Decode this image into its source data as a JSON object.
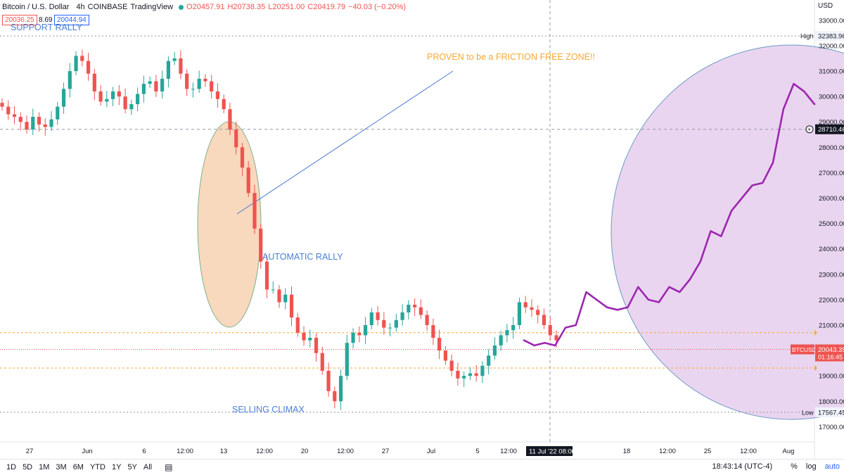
{
  "header": {
    "symbol": "Bitcoin / U.S. Dollar",
    "interval": "4h",
    "exchange": "COINBASE",
    "platform": "TradingView",
    "open": "O20457.91",
    "high": "H20738.35",
    "low": "L20251.00",
    "close": "C20419.79",
    "change": "−40.03 (−0.20%)",
    "sell_price": "20036.25",
    "spread": "8.69",
    "buy_price": "20044.94"
  },
  "currency": "USD",
  "colors": {
    "up": "#26a69a",
    "down": "#ef5350",
    "forecast": "#9c27b0",
    "ellipse_fill": "#f8d9bd",
    "circle_fill": "#ead5f0",
    "annotation_orange": "#f7a738",
    "annotation_blue": "#4a7fd6",
    "guide_line": "#4a78d4"
  },
  "annotations": {
    "support_rally": "SUPPORT RALLY",
    "friction_free": "PROVEN to be a FRICTION FREE ZONE!!",
    "automatic_rally": "AUTOMATIC RALLY",
    "selling_climax": "SELLING CLIMAX"
  },
  "chart_data": {
    "type": "candlestick",
    "title": "Bitcoin / U.S. Dollar · 4h · COINBASE",
    "y_axis": {
      "ticks": [
        "17000.00",
        "18000.00",
        "19000.00",
        "20000.00",
        "21000.00",
        "22000.00",
        "23000.00",
        "24000.00",
        "25000.00",
        "26000.00",
        "27000.00",
        "28000.00",
        "29000.00",
        "30000.00",
        "31000.00",
        "32000.00",
        "33000.00"
      ],
      "range": [
        16400,
        33800
      ]
    },
    "x_axis": {
      "ticks": [
        "27",
        "Jun",
        "6",
        "12:00",
        "13",
        "12:00",
        "20",
        "12:00",
        "27",
        "Jul",
        "5",
        "12:00",
        "18",
        "12:00",
        "25",
        "12:00",
        "Aug"
      ]
    },
    "price_labels": {
      "high_label": "High",
      "high_value": "32383.96",
      "low_label": "Low",
      "low_value": "17567.45",
      "crosshair_value": "28710.46",
      "symbol_tag": "BTCUSD",
      "last_price": "20043.39",
      "countdown": "01:16:45"
    },
    "crosshair_time": "11 Jul '22",
    "crosshair_time2": "08:00",
    "levels": [
      {
        "name": "high",
        "value": 32383.96
      },
      {
        "name": "crosshair",
        "value": 28710.46
      },
      {
        "name": "resistance",
        "value": 20700
      },
      {
        "name": "last",
        "value": 20043.39
      },
      {
        "name": "support",
        "value": 19310
      },
      {
        "name": "low",
        "value": 17567.45
      }
    ],
    "series": [
      {
        "name": "BTCUSD 4h (close, approx)",
        "values": [
          29600,
          29300,
          29200,
          29000,
          28700,
          29200,
          28900,
          28800,
          29100,
          29600,
          30300,
          31000,
          31600,
          31400,
          30900,
          30200,
          29800,
          29900,
          30200,
          30000,
          29500,
          29700,
          30100,
          30500,
          30600,
          30200,
          30700,
          31400,
          31500,
          30900,
          30300,
          30300,
          30700,
          30600,
          30200,
          29900,
          29500,
          28700,
          28000,
          27200,
          26200,
          24800,
          23500,
          22400,
          22400,
          21900,
          22200,
          21300,
          20700,
          20400,
          20500,
          19900,
          19200,
          18400,
          18000,
          19000,
          20300,
          20700,
          20600,
          21000,
          21500,
          21200,
          20900,
          20900,
          21200,
          21500,
          21800,
          21700,
          21400,
          21000,
          20500,
          20000,
          19600,
          19200,
          18900,
          19000,
          19100,
          19000,
          19400,
          19800,
          20200,
          20600,
          20800,
          21000,
          21900,
          21700,
          21600,
          21400,
          21000,
          20600,
          20400
        ]
      },
      {
        "name": "forecast path",
        "values": [
          20400,
          20200,
          20300,
          20200,
          20900,
          21000,
          22300,
          22000,
          21700,
          21600,
          21700,
          22500,
          22000,
          21900,
          22500,
          22300,
          22800,
          23500,
          24700,
          24500,
          25500,
          26000,
          26500,
          26600,
          27400,
          29500,
          30500,
          30200,
          29700
        ]
      }
    ]
  },
  "bottom_bar": {
    "ranges": [
      "1D",
      "5D",
      "1M",
      "3M",
      "6M",
      "YTD",
      "1Y",
      "5Y",
      "All"
    ],
    "time": "18:43:14 (UTC-4)",
    "percent": "%",
    "log": "log",
    "auto": "auto"
  }
}
